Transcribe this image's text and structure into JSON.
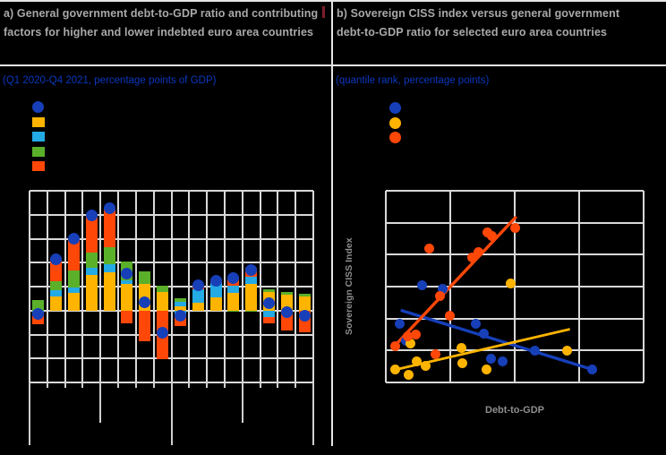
{
  "colors": {
    "background": "#000000",
    "grid": "#D9D9D9",
    "title_text": "#A9A9A9",
    "axis_label_text": "#8E8E8E",
    "subtitle_blue": "#0A38C0",
    "blue": "#163FB8",
    "yellow": "#FFB400",
    "light_blue": "#24AAE4",
    "green": "#5BB02A",
    "orange_red": "#FF4708",
    "title_mark_red": "#7B1E2A"
  },
  "panel_a": {
    "title": "a) General government debt-to-GDP ratio and contributing factors for higher and lower indebted euro area countries",
    "subtitle": "(Q1 2020-Q4 2021, percentage points of GDP)",
    "legend": [
      {
        "marker": "circle",
        "color_key": "blue",
        "label": ""
      },
      {
        "marker": "square",
        "color_key": "yellow",
        "label": ""
      },
      {
        "marker": "square",
        "color_key": "light_blue",
        "label": ""
      },
      {
        "marker": "square",
        "color_key": "green",
        "label": ""
      },
      {
        "marker": "square",
        "color_key": "orange_red",
        "label": ""
      }
    ]
  },
  "panel_b": {
    "title": "b) Sovereign CISS index versus general government debt-to-GDP ratio for selected euro area countries",
    "subtitle": "(quantile rank, percentage points)",
    "legend": [
      {
        "marker": "circle",
        "color_key": "blue",
        "label": ""
      },
      {
        "marker": "circle",
        "color_key": "yellow",
        "label": ""
      },
      {
        "marker": "circle",
        "color_key": "orange_red",
        "label": ""
      }
    ],
    "xlabel": "Debt-to-GDP",
    "ylabel": "Sovereign CISS Index"
  },
  "notes": "Axis tick labels, x-axis category labels and legend item labels are rendered black-on-black in the source image and are not visible; numeric values below are estimated from gridlines (panel a: 5 pp per gridline, zero at the 6th gridline).",
  "chart_data": [
    {
      "panel": "a",
      "type": "bar",
      "title": "a) General government debt-to-GDP ratio and contributing factors for higher and lower indebted euro area countries",
      "subtitle": "(Q1 2020-Q4 2021, percentage points of GDP)",
      "ylim": [
        -15,
        25
      ],
      "y_step": 5,
      "grid": true,
      "tick_labels_visible": false,
      "categories": [
        "",
        "",
        "",
        "",
        "",
        "",
        "",
        "",
        "",
        "",
        "",
        "",
        "",
        "",
        "",
        ""
      ],
      "group_separators": {
        "long_at": [
          0,
          8,
          16
        ],
        "medium_at": [
          4,
          12
        ]
      },
      "dot_series": "net change (blue dot)",
      "bars": [
        {
          "segments": [
            {
              "color": "green",
              "value": 2.2
            },
            {
              "color": "light_blue",
              "value": -0.5
            },
            {
              "color": "orange_red",
              "value": -2.3
            }
          ],
          "dot": -0.7
        },
        {
          "segments": [
            {
              "color": "yellow",
              "value": 3.0
            },
            {
              "color": "light_blue",
              "value": 1.3
            },
            {
              "color": "green",
              "value": 1.9
            },
            {
              "color": "orange_red",
              "value": 4.7
            }
          ],
          "dot": 10.7
        },
        {
          "segments": [
            {
              "color": "yellow",
              "value": 3.6
            },
            {
              "color": "light_blue",
              "value": 1.3
            },
            {
              "color": "green",
              "value": 3.4
            },
            {
              "color": "orange_red",
              "value": 6.6
            }
          ],
          "dot": 15.0
        },
        {
          "segments": [
            {
              "color": "yellow",
              "value": 7.4
            },
            {
              "color": "light_blue",
              "value": 1.6
            },
            {
              "color": "green",
              "value": 3.1
            },
            {
              "color": "orange_red",
              "value": 7.5
            }
          ],
          "dot": 19.8
        },
        {
          "segments": [
            {
              "color": "yellow",
              "value": 8.0
            },
            {
              "color": "light_blue",
              "value": 1.6
            },
            {
              "color": "green",
              "value": 3.7
            },
            {
              "color": "orange_red",
              "value": 7.9
            }
          ],
          "dot": 21.4
        },
        {
          "segments": [
            {
              "color": "yellow",
              "value": 5.6
            },
            {
              "color": "light_blue",
              "value": 0.8
            },
            {
              "color": "green",
              "value": 3.9
            },
            {
              "color": "orange_red",
              "value": -2.6
            }
          ],
          "dot": 7.8
        },
        {
          "segments": [
            {
              "color": "yellow",
              "value": 5.5
            },
            {
              "color": "green",
              "value": 2.6
            },
            {
              "color": "orange_red",
              "value": -6.4
            }
          ],
          "dot": 1.7
        },
        {
          "segments": [
            {
              "color": "yellow",
              "value": 3.8
            },
            {
              "color": "green",
              "value": 1.4
            },
            {
              "color": "orange_red",
              "value": -10.1
            }
          ],
          "dot": -4.7
        },
        {
          "segments": [
            {
              "color": "yellow",
              "value": 0.8
            },
            {
              "color": "light_blue",
              "value": 1.1
            },
            {
              "color": "green",
              "value": 0.7
            },
            {
              "color": "light_blue",
              "value": -0.8
            },
            {
              "color": "orange_red",
              "value": -2.5
            }
          ],
          "dot": -1.0
        },
        {
          "segments": [
            {
              "color": "yellow",
              "value": 1.6
            },
            {
              "color": "light_blue",
              "value": 2.9
            },
            {
              "color": "orange_red",
              "value": 0.9
            }
          ],
          "dot": 5.3
        },
        {
          "segments": [
            {
              "color": "yellow",
              "value": 2.8
            },
            {
              "color": "light_blue",
              "value": 2.9
            },
            {
              "color": "orange_red",
              "value": 0.8
            }
          ],
          "dot": 6.3
        },
        {
          "segments": [
            {
              "color": "yellow",
              "value": 3.6
            },
            {
              "color": "light_blue",
              "value": 1.5
            },
            {
              "color": "orange_red",
              "value": 1.6
            },
            {
              "color": "green",
              "value": -0.3
            }
          ],
          "dot": 6.7
        },
        {
          "segments": [
            {
              "color": "yellow",
              "value": 5.5
            },
            {
              "color": "light_blue",
              "value": 1.6
            },
            {
              "color": "orange_red",
              "value": 1.8
            },
            {
              "color": "green",
              "value": -0.3
            }
          ],
          "dot": 8.5
        },
        {
          "segments": [
            {
              "color": "yellow",
              "value": 3.9
            },
            {
              "color": "green",
              "value": 0.6
            },
            {
              "color": "light_blue",
              "value": -1.4
            },
            {
              "color": "orange_red",
              "value": -1.3
            }
          ],
          "dot": 1.6
        },
        {
          "segments": [
            {
              "color": "yellow",
              "value": 3.3
            },
            {
              "color": "green",
              "value": 0.5
            },
            {
              "color": "orange_red",
              "value": -4.2
            }
          ],
          "dot": -0.3
        },
        {
          "segments": [
            {
              "color": "yellow",
              "value": 3.0
            },
            {
              "color": "green",
              "value": 0.5
            },
            {
              "color": "orange_red",
              "value": -4.5
            }
          ],
          "dot": -1.1
        }
      ]
    },
    {
      "panel": "b",
      "type": "scatter",
      "title": "b) Sovereign CISS index versus general government debt-to-GDP ratio for selected euro area countries",
      "subtitle": "(quantile rank, percentage points)",
      "xlabel": "Debt-to-GDP",
      "ylabel": "Sovereign CISS Index",
      "axes": {
        "x_gridline_count": 5,
        "y_gridline_count": 7,
        "tick_labels_visible": false
      },
      "coord_units": "percent of plot area, origin bottom-left",
      "series": [
        {
          "color_key": "blue",
          "points": [
            [
              13.9,
              50.7
            ],
            [
              21.9,
              48.6
            ],
            [
              5.3,
              30.8
            ],
            [
              7.8,
              21.5
            ],
            [
              35.0,
              30.4
            ],
            [
              37.9,
              25.7
            ],
            [
              40.7,
              12.5
            ],
            [
              45.4,
              10.9
            ],
            [
              57.9,
              16.4
            ],
            [
              80.0,
              7.0
            ]
          ],
          "trend": [
            [
              5.8,
              37.7
            ],
            [
              81.2,
              6.3
            ]
          ]
        },
        {
          "color_key": "yellow",
          "points": [
            [
              48.5,
              51.7
            ],
            [
              9.6,
              20.3
            ],
            [
              29.2,
              17.9
            ],
            [
              29.8,
              10.1
            ],
            [
              39.0,
              7.0
            ],
            [
              3.8,
              7.0
            ],
            [
              9.0,
              3.9
            ],
            [
              15.3,
              8.6
            ],
            [
              11.9,
              10.9
            ],
            [
              70.2,
              16.4
            ]
          ],
          "trend": [
            [
              2.6,
              6.3
            ],
            [
              71.4,
              27.8
            ]
          ]
        },
        {
          "color_key": "orange_red",
          "points": [
            [
              16.8,
              69.8
            ],
            [
              39.4,
              78.2
            ],
            [
              41.3,
              76.4
            ],
            [
              50.1,
              80.8
            ],
            [
              33.5,
              65.1
            ],
            [
              36.1,
              68.2
            ],
            [
              20.9,
              45.2
            ],
            [
              24.7,
              35.0
            ],
            [
              11.8,
              25.0
            ],
            [
              8.4,
              24.2
            ],
            [
              3.8,
              18.7
            ],
            [
              19.4,
              14.8
            ]
          ],
          "trend": [
            [
              2.6,
              17.9
            ],
            [
              50.6,
              86.5
            ]
          ]
        }
      ]
    }
  ]
}
